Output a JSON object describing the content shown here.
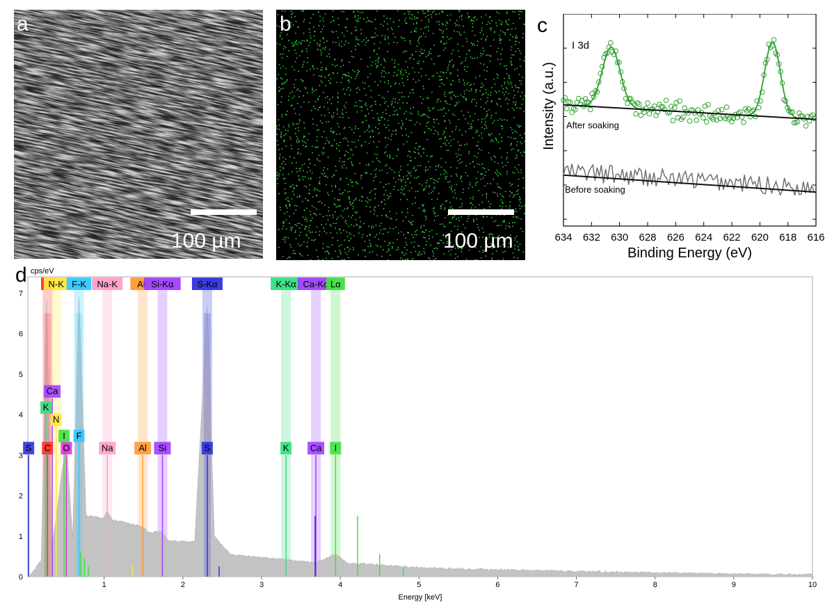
{
  "panels": {
    "a": {
      "letter": "a",
      "scale_label": "100 µm"
    },
    "b": {
      "letter": "b",
      "scale_label": "100 µm"
    },
    "c": {
      "letter": "c"
    },
    "d": {
      "letter": "d"
    }
  },
  "colors": {
    "map_dot": "#39d23a",
    "xps_data": "#2ea02e",
    "xps_before": "#707070",
    "edx_fill": "#c3c3c3"
  },
  "chart_data": [
    {
      "type": "line",
      "panel": "c",
      "title": "",
      "annotation": "I 3d",
      "xlabel": "Binding Energy (eV)",
      "ylabel": "Intensity (a.u.)",
      "xlim": [
        634,
        616
      ],
      "x_reversed": true,
      "x_ticks": [
        634,
        632,
        630,
        628,
        626,
        624,
        622,
        620,
        618,
        616
      ],
      "series": [
        {
          "name": "After soaking",
          "style": "markers+fit",
          "peaks": [
            {
              "x": 630.6,
              "height": 0.5,
              "fwhm": 1.5
            },
            {
              "x": 619.1,
              "height": 0.62,
              "fwhm": 1.3
            }
          ],
          "baseline": [
            [
              634,
              1.0
            ],
            [
              616,
              0.88
            ]
          ]
        },
        {
          "name": "Before soaking",
          "style": "line+baseline",
          "baseline": [
            [
              634,
              0.42
            ],
            [
              616,
              0.28
            ]
          ]
        }
      ]
    },
    {
      "type": "area",
      "panel": "d",
      "ylabel": "cps/eV",
      "xlabel": "Energy [keV]",
      "xlim": [
        0,
        10
      ],
      "ylim": [
        0,
        7.4
      ],
      "x_ticks": [
        1,
        2,
        3,
        4,
        5,
        6,
        7,
        8,
        9,
        10
      ],
      "y_ticks": [
        0,
        1,
        2,
        3,
        4,
        5,
        6,
        7
      ],
      "spectrum": [
        [
          0.05,
          0
        ],
        [
          0.2,
          0.4
        ],
        [
          0.27,
          6.8
        ],
        [
          0.33,
          0.6
        ],
        [
          0.52,
          3.4
        ],
        [
          0.6,
          0.9
        ],
        [
          0.68,
          6.9
        ],
        [
          0.77,
          1.5
        ],
        [
          1.0,
          1.45
        ],
        [
          1.04,
          1.6
        ],
        [
          1.1,
          1.4
        ],
        [
          1.49,
          1.25
        ],
        [
          1.55,
          1.1
        ],
        [
          1.74,
          1.1
        ],
        [
          1.8,
          0.9
        ],
        [
          2.15,
          0.85
        ],
        [
          2.31,
          6.7
        ],
        [
          2.4,
          1.0
        ],
        [
          2.6,
          0.55
        ],
        [
          3.3,
          0.42
        ],
        [
          3.7,
          0.35
        ],
        [
          3.94,
          0.55
        ],
        [
          4.1,
          0.32
        ],
        [
          4.3,
          0.32
        ],
        [
          5,
          0.22
        ],
        [
          6,
          0.17
        ],
        [
          7,
          0.13
        ],
        [
          8,
          0.1
        ],
        [
          9,
          0.06
        ],
        [
          10,
          0.05
        ]
      ],
      "element_bands": [
        {
          "label": "C",
          "x": 0.28,
          "color": "#ff3030"
        },
        {
          "label": "N-K",
          "x": 0.39,
          "color": "#ffe640"
        },
        {
          "label": "F-K",
          "x": 0.68,
          "color": "#33c8ff"
        },
        {
          "label": "Na-K",
          "x": 1.04,
          "color": "#ff9ec8"
        },
        {
          "label": "Al-",
          "x": 1.49,
          "color": "#ff9933"
        },
        {
          "label": "Si-Kα",
          "x": 1.74,
          "color": "#a040ff"
        },
        {
          "label": "S-Kα",
          "x": 2.31,
          "color": "#3030e0"
        },
        {
          "label": "K-Kα",
          "x": 3.31,
          "color": "#33e080"
        },
        {
          "label": "Ca-Kα",
          "x": 3.69,
          "color": "#a040ff"
        },
        {
          "label": "Lα",
          "x": 3.94,
          "color": "#40e040"
        }
      ],
      "line_markers": [
        {
          "label": "S",
          "x": 0.04,
          "h": 3.0,
          "color": "#3030e0"
        },
        {
          "label": "C",
          "x": 0.28,
          "h": 3.0,
          "color": "#ff3030"
        },
        {
          "label": "O",
          "x": 0.52,
          "h": 3.0,
          "color": "#e030e0"
        },
        {
          "label": "I",
          "x": 0.49,
          "h": 3.3,
          "color": "#40e040"
        },
        {
          "label": "F",
          "x": 0.68,
          "h": 3.3,
          "color": "#33c8ff"
        },
        {
          "label": "N",
          "x": 0.39,
          "h": 3.7,
          "color": "#ffe640"
        },
        {
          "label": "K",
          "x": 0.26,
          "h": 4.0,
          "color": "#33e080"
        },
        {
          "label": "Ca",
          "x": 0.34,
          "h": 4.4,
          "color": "#a040ff"
        },
        {
          "label": "Na",
          "x": 1.04,
          "h": 3.0,
          "color": "#ff9ec8"
        },
        {
          "label": "Al",
          "x": 1.49,
          "h": 3.0,
          "color": "#ff9933"
        },
        {
          "label": "Si",
          "x": 1.74,
          "h": 3.0,
          "color": "#a040ff"
        },
        {
          "label": "S",
          "x": 2.31,
          "h": 3.0,
          "color": "#3030e0"
        },
        {
          "label": "K",
          "x": 3.31,
          "h": 3.0,
          "color": "#33e080"
        },
        {
          "label": "Ca",
          "x": 3.69,
          "h": 3.0,
          "color": "#a040ff"
        },
        {
          "label": "I",
          "x": 3.94,
          "h": 3.0,
          "color": "#40e040"
        }
      ]
    }
  ]
}
